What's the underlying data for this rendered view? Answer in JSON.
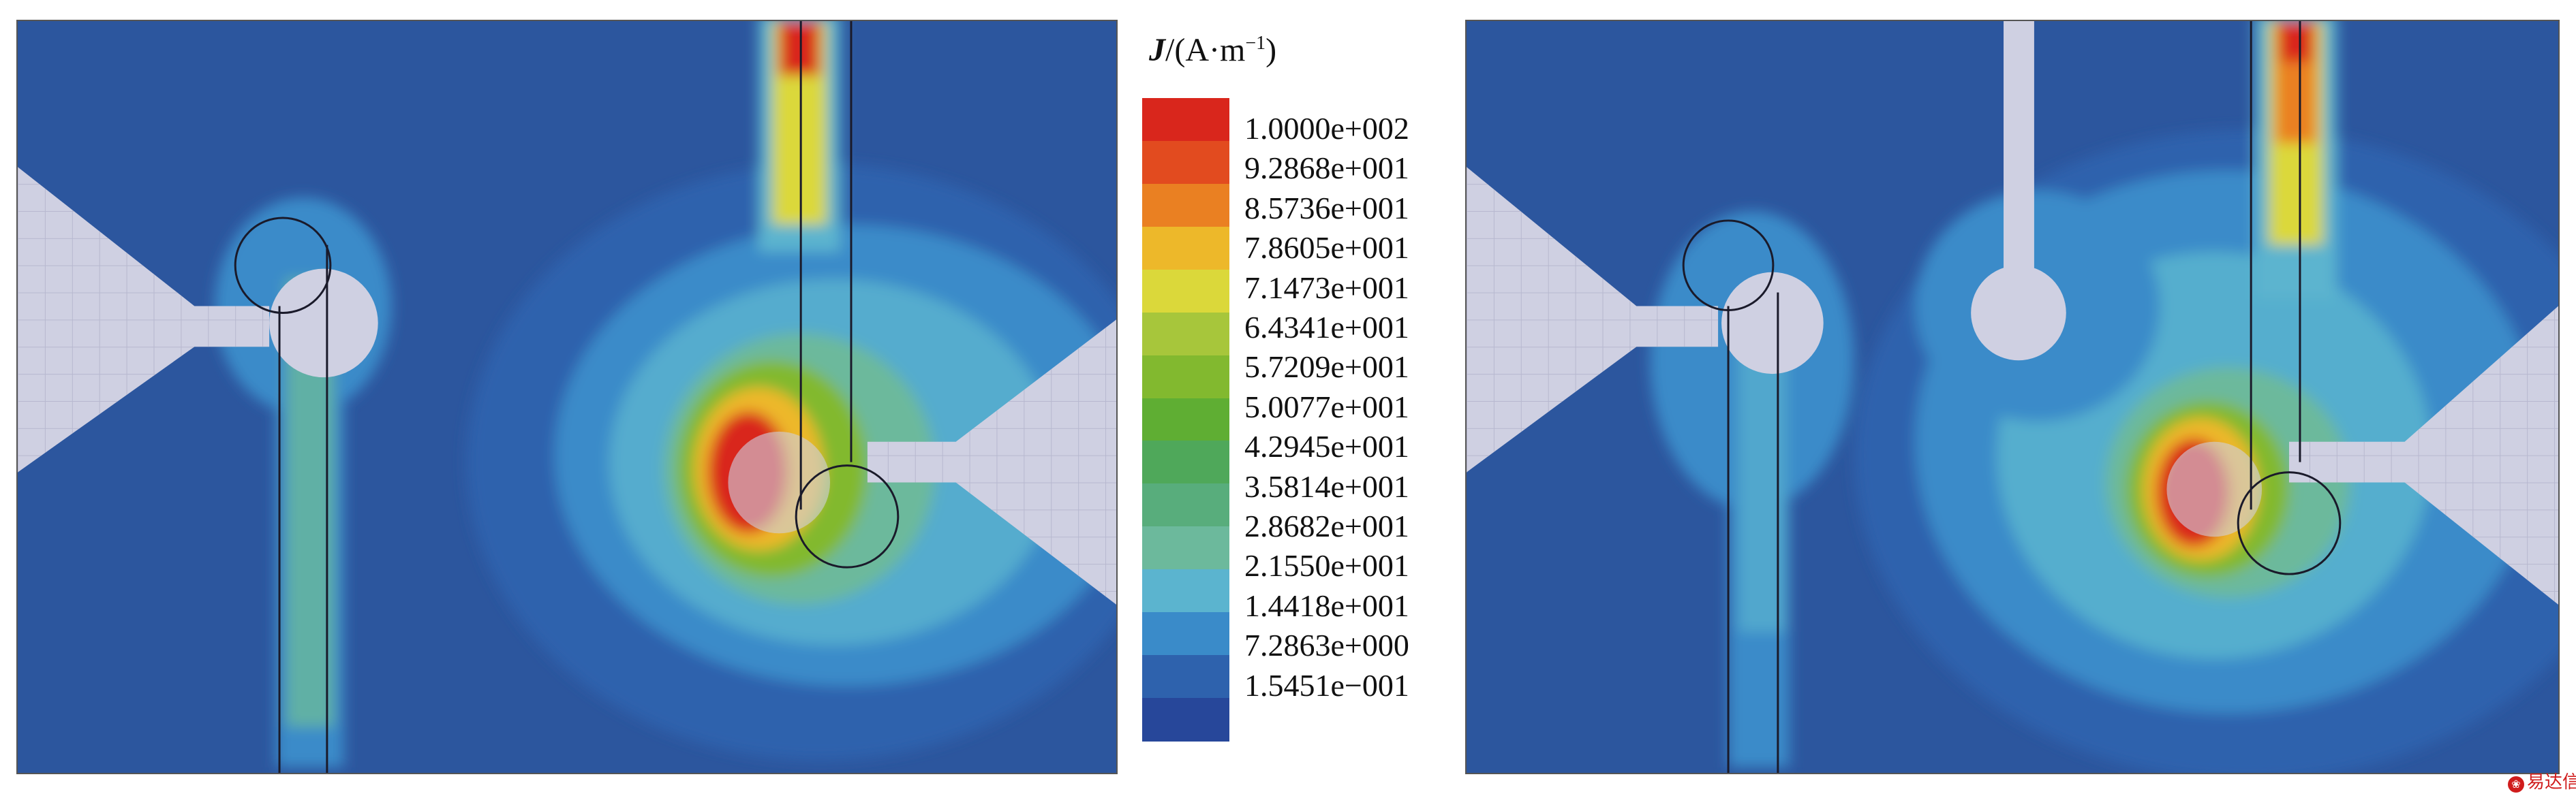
{
  "legend": {
    "symbol": "J",
    "unit_prefix": "/(A·m",
    "unit_exponent": "−1",
    "unit_suffix": ")",
    "levels": [
      {
        "label": "1.0000e+002",
        "color": "#d9261c"
      },
      {
        "label": "9.2868e+001",
        "color": "#e24b1f"
      },
      {
        "label": "8.5736e+001",
        "color": "#ea8022"
      },
      {
        "label": "7.8605e+001",
        "color": "#edb82a"
      },
      {
        "label": "7.1473e+001",
        "color": "#dbd83a"
      },
      {
        "label": "6.4341e+001",
        "color": "#a7c63b"
      },
      {
        "label": "5.7209e+001",
        "color": "#82b92f"
      },
      {
        "label": "5.0077e+001",
        "color": "#5fae33"
      },
      {
        "label": "4.2945e+001",
        "color": "#4fa85a"
      },
      {
        "label": "3.5814e+001",
        "color": "#58ad7c"
      },
      {
        "label": "2.8682e+001",
        "color": "#6cb99c"
      },
      {
        "label": "2.1550e+001",
        "color": "#5bb4cf"
      },
      {
        "label": "1.4418e+001",
        "color": "#3a8bc9"
      },
      {
        "label": "7.2863e+000",
        "color": "#2e62ad"
      },
      {
        "label": "1.5451e−001",
        "color": "#27479a"
      }
    ]
  },
  "colors": {
    "background_field": "#2c569e",
    "metal": "#cfd0e2",
    "grid": "#b7b8cf",
    "outline": "#1a1a2a"
  },
  "watermark": "易达信"
}
